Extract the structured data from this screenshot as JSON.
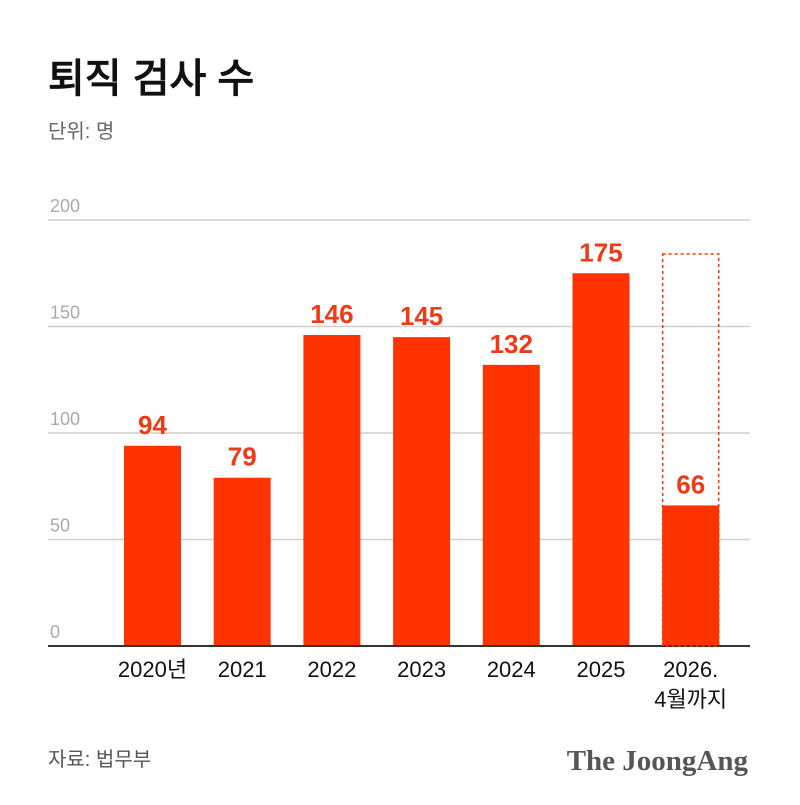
{
  "chart_data": {
    "type": "bar",
    "title": "퇴직 검사 수",
    "unit_label": "단위: 명",
    "categories": [
      "2020년",
      "2021",
      "2022",
      "2023",
      "2024",
      "2025",
      "2026.\n4월까지"
    ],
    "values": [
      94,
      79,
      146,
      145,
      132,
      175,
      66
    ],
    "ylim": [
      0,
      200
    ],
    "yticks": [
      0,
      50,
      100,
      150,
      200
    ],
    "grid": true,
    "bar_color": "#ff3300",
    "label_color": "#f03a17",
    "partial_last_bar_dashed_outline": true
  },
  "footer": {
    "source": "자료: 법무부",
    "logo": "The JoongAng"
  }
}
